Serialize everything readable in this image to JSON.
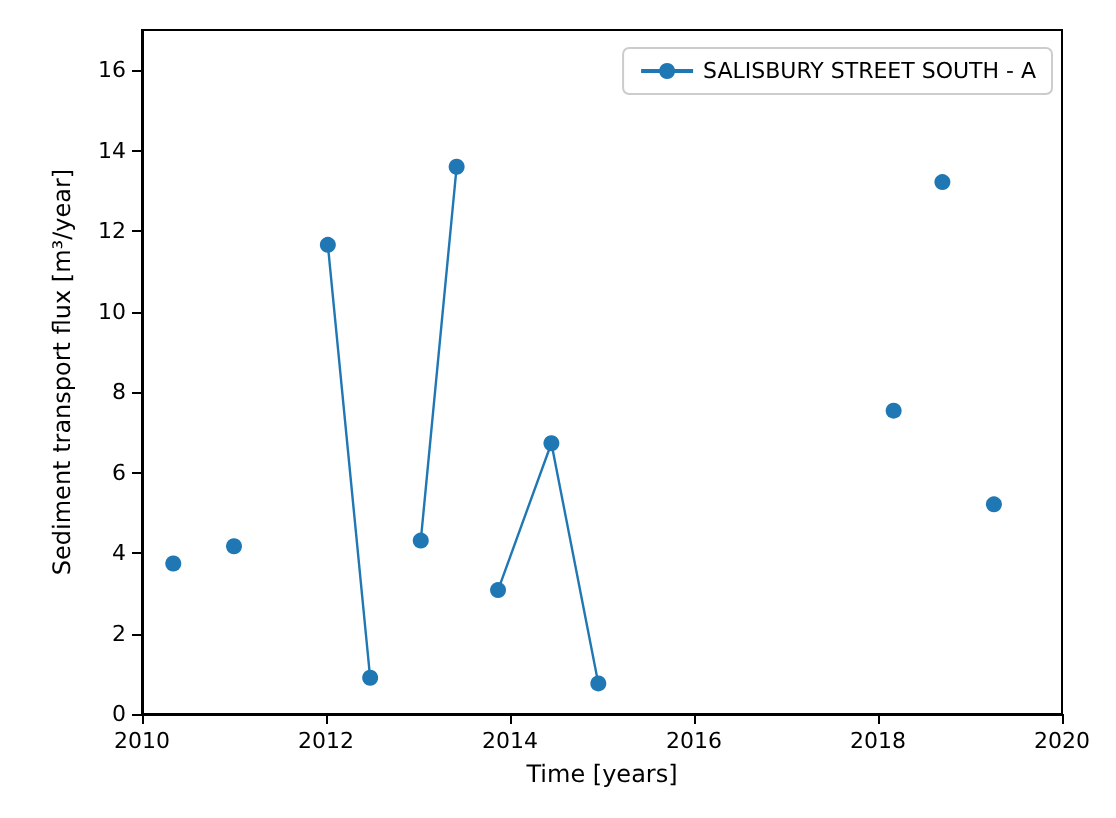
{
  "chart_data": {
    "type": "line",
    "xlabel": "Time [years]",
    "ylabel": "Sediment transport flux [m³/year]",
    "xlim": [
      2010,
      2020
    ],
    "xticks": [
      2010,
      2012,
      2014,
      2016,
      2018,
      2020
    ],
    "ylim": [
      0,
      17
    ],
    "yticks": [
      0,
      2,
      4,
      6,
      8,
      10,
      12,
      14,
      16
    ],
    "series": [
      {
        "name": "SALISBURY STREET SOUTH - A",
        "color": "#1f77b4",
        "x": [
          2010.34,
          2010.7,
          2011.0,
          2011.5,
          2012.02,
          2012.48,
          2012.75,
          2013.03,
          2013.42,
          2013.65,
          2013.87,
          2014.45,
          2014.96,
          2016.5,
          2018.17,
          2018.45,
          2018.7,
          2019.0,
          2019.26
        ],
        "values": [
          3.74,
          null,
          4.17,
          null,
          11.66,
          0.9,
          null,
          4.31,
          13.6,
          null,
          3.08,
          6.73,
          0.76,
          null,
          7.54,
          null,
          13.22,
          null,
          5.21
        ]
      }
    ],
    "legend": "top right",
    "grid": false,
    "marker": "circle",
    "line_style": "solid"
  }
}
